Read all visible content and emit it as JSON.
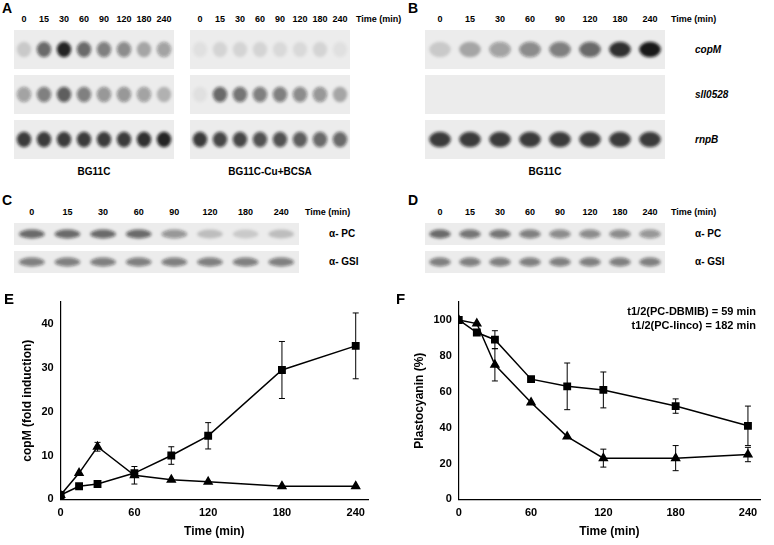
{
  "blot_panels": [
    {
      "label": "A",
      "blots": [
        {
          "condition": "BG11C",
          "times": [
            0,
            15,
            30,
            60,
            90,
            120,
            180,
            240
          ],
          "rows": [
            {
              "bands": [
                0.15,
                0.6,
                0.9,
                0.6,
                0.5,
                0.45,
                0.3,
                0.35
              ]
            },
            {
              "bands": [
                0.35,
                0.5,
                0.65,
                0.5,
                0.4,
                0.4,
                0.35,
                0.25
              ]
            },
            {
              "bands": [
                0.8,
                0.8,
                0.8,
                0.8,
                0.8,
                0.8,
                0.85,
                0.9
              ]
            }
          ]
        },
        {
          "condition": "BG11C-Cu+BCSA",
          "times": [
            0,
            15,
            30,
            60,
            90,
            120,
            180,
            240
          ],
          "time_label": "Time (min)",
          "rows": [
            {
              "bands": [
                0.05,
                0.1,
                0.1,
                0.1,
                0.08,
                0.08,
                0.1,
                0.05
              ]
            },
            {
              "bands": [
                0.05,
                0.6,
                0.55,
                0.5,
                0.5,
                0.45,
                0.4,
                0.3
              ]
            },
            {
              "bands": [
                0.8,
                0.75,
                0.75,
                0.7,
                0.7,
                0.65,
                0.6,
                0.6
              ]
            }
          ]
        }
      ]
    },
    {
      "label": "B",
      "blots": [
        {
          "condition": "BG11C",
          "times": [
            0,
            15,
            30,
            60,
            90,
            120,
            180,
            240
          ],
          "time_label": "Time (min)",
          "rows": [
            {
              "label": "copM",
              "bands": [
                0.15,
                0.3,
                0.35,
                0.45,
                0.5,
                0.6,
                0.85,
                0.95
              ]
            },
            {
              "label": "sll0528",
              "bands": [
                0,
                0,
                0,
                0,
                0,
                0,
                0,
                0
              ]
            },
            {
              "label": "rnpB",
              "bands": [
                0.8,
                0.8,
                0.8,
                0.8,
                0.8,
                0.8,
                0.8,
                0.8
              ]
            }
          ]
        }
      ]
    },
    {
      "label": "C",
      "blots": [
        {
          "times": [
            0,
            15,
            30,
            60,
            90,
            120,
            180,
            240
          ],
          "time_label": "Time (min)",
          "rows": [
            {
              "label": "α- PC",
              "bands": [
                0.6,
                0.6,
                0.6,
                0.6,
                0.4,
                0.2,
                0.15,
                0.2
              ]
            },
            {
              "label": "α- GSI",
              "bands": [
                0.5,
                0.5,
                0.5,
                0.5,
                0.5,
                0.5,
                0.5,
                0.5
              ]
            }
          ]
        }
      ]
    },
    {
      "label": "D",
      "blots": [
        {
          "times": [
            0,
            15,
            30,
            60,
            90,
            120,
            180,
            240
          ],
          "time_label": "Time (min)",
          "rows": [
            {
              "label": "α- PC",
              "bands": [
                0.6,
                0.55,
                0.55,
                0.5,
                0.45,
                0.45,
                0.45,
                0.4
              ]
            },
            {
              "label": "α- GSI",
              "bands": [
                0.5,
                0.5,
                0.5,
                0.5,
                0.5,
                0.5,
                0.5,
                0.5
              ]
            }
          ]
        }
      ]
    }
  ],
  "chart_data": [
    {
      "panel": "E",
      "type": "line",
      "x_label": "Time (min)",
      "y_label": "copM (fold induction)",
      "x": [
        0,
        15,
        30,
        60,
        90,
        120,
        180,
        240
      ],
      "xlim": [
        0,
        250
      ],
      "xticks": [
        0,
        60,
        120,
        180,
        240
      ],
      "ylim": [
        0,
        45
      ],
      "yticks": [
        0,
        10,
        20,
        30,
        40
      ],
      "grid": false,
      "series": [
        {
          "marker": "square",
          "color": "#000000",
          "values": [
            1,
            3,
            3.5,
            6,
            10,
            14.5,
            29.5,
            35
          ],
          "errors": [
            null,
            null,
            null,
            null,
            2,
            3,
            6.5,
            7.5
          ]
        },
        {
          "marker": "triangle",
          "color": "#000000",
          "values": [
            1,
            6,
            12,
            5.5,
            4.5,
            4,
            3,
            3
          ],
          "errors": [
            null,
            null,
            1,
            2,
            null,
            null,
            null,
            null
          ]
        }
      ]
    },
    {
      "panel": "F",
      "type": "line",
      "x_label": "Time (min)",
      "y_label": "Plastocyanin (%)",
      "annotations": [
        "t1/2(PC-DBMIB) = 59 min",
        "t1/2(PC-linco) = 182 min"
      ],
      "x": [
        0,
        15,
        30,
        60,
        90,
        120,
        180,
        240
      ],
      "xlim": [
        0,
        250
      ],
      "xticks": [
        0,
        60,
        120,
        180,
        240
      ],
      "ylim": [
        0,
        110
      ],
      "yticks": [
        0,
        20,
        40,
        60,
        80,
        100
      ],
      "grid": false,
      "series": [
        {
          "marker": "square",
          "color": "#000000",
          "values": [
            100,
            93,
            89,
            67,
            63,
            61,
            52,
            41
          ],
          "errors": [
            null,
            null,
            5,
            null,
            13,
            10,
            4,
            11
          ]
        },
        {
          "marker": "triangle",
          "color": "#000000",
          "values": [
            100,
            98,
            75,
            54,
            35,
            23,
            23,
            25
          ],
          "errors": [
            null,
            null,
            9,
            null,
            null,
            5,
            7,
            4
          ]
        }
      ]
    }
  ]
}
